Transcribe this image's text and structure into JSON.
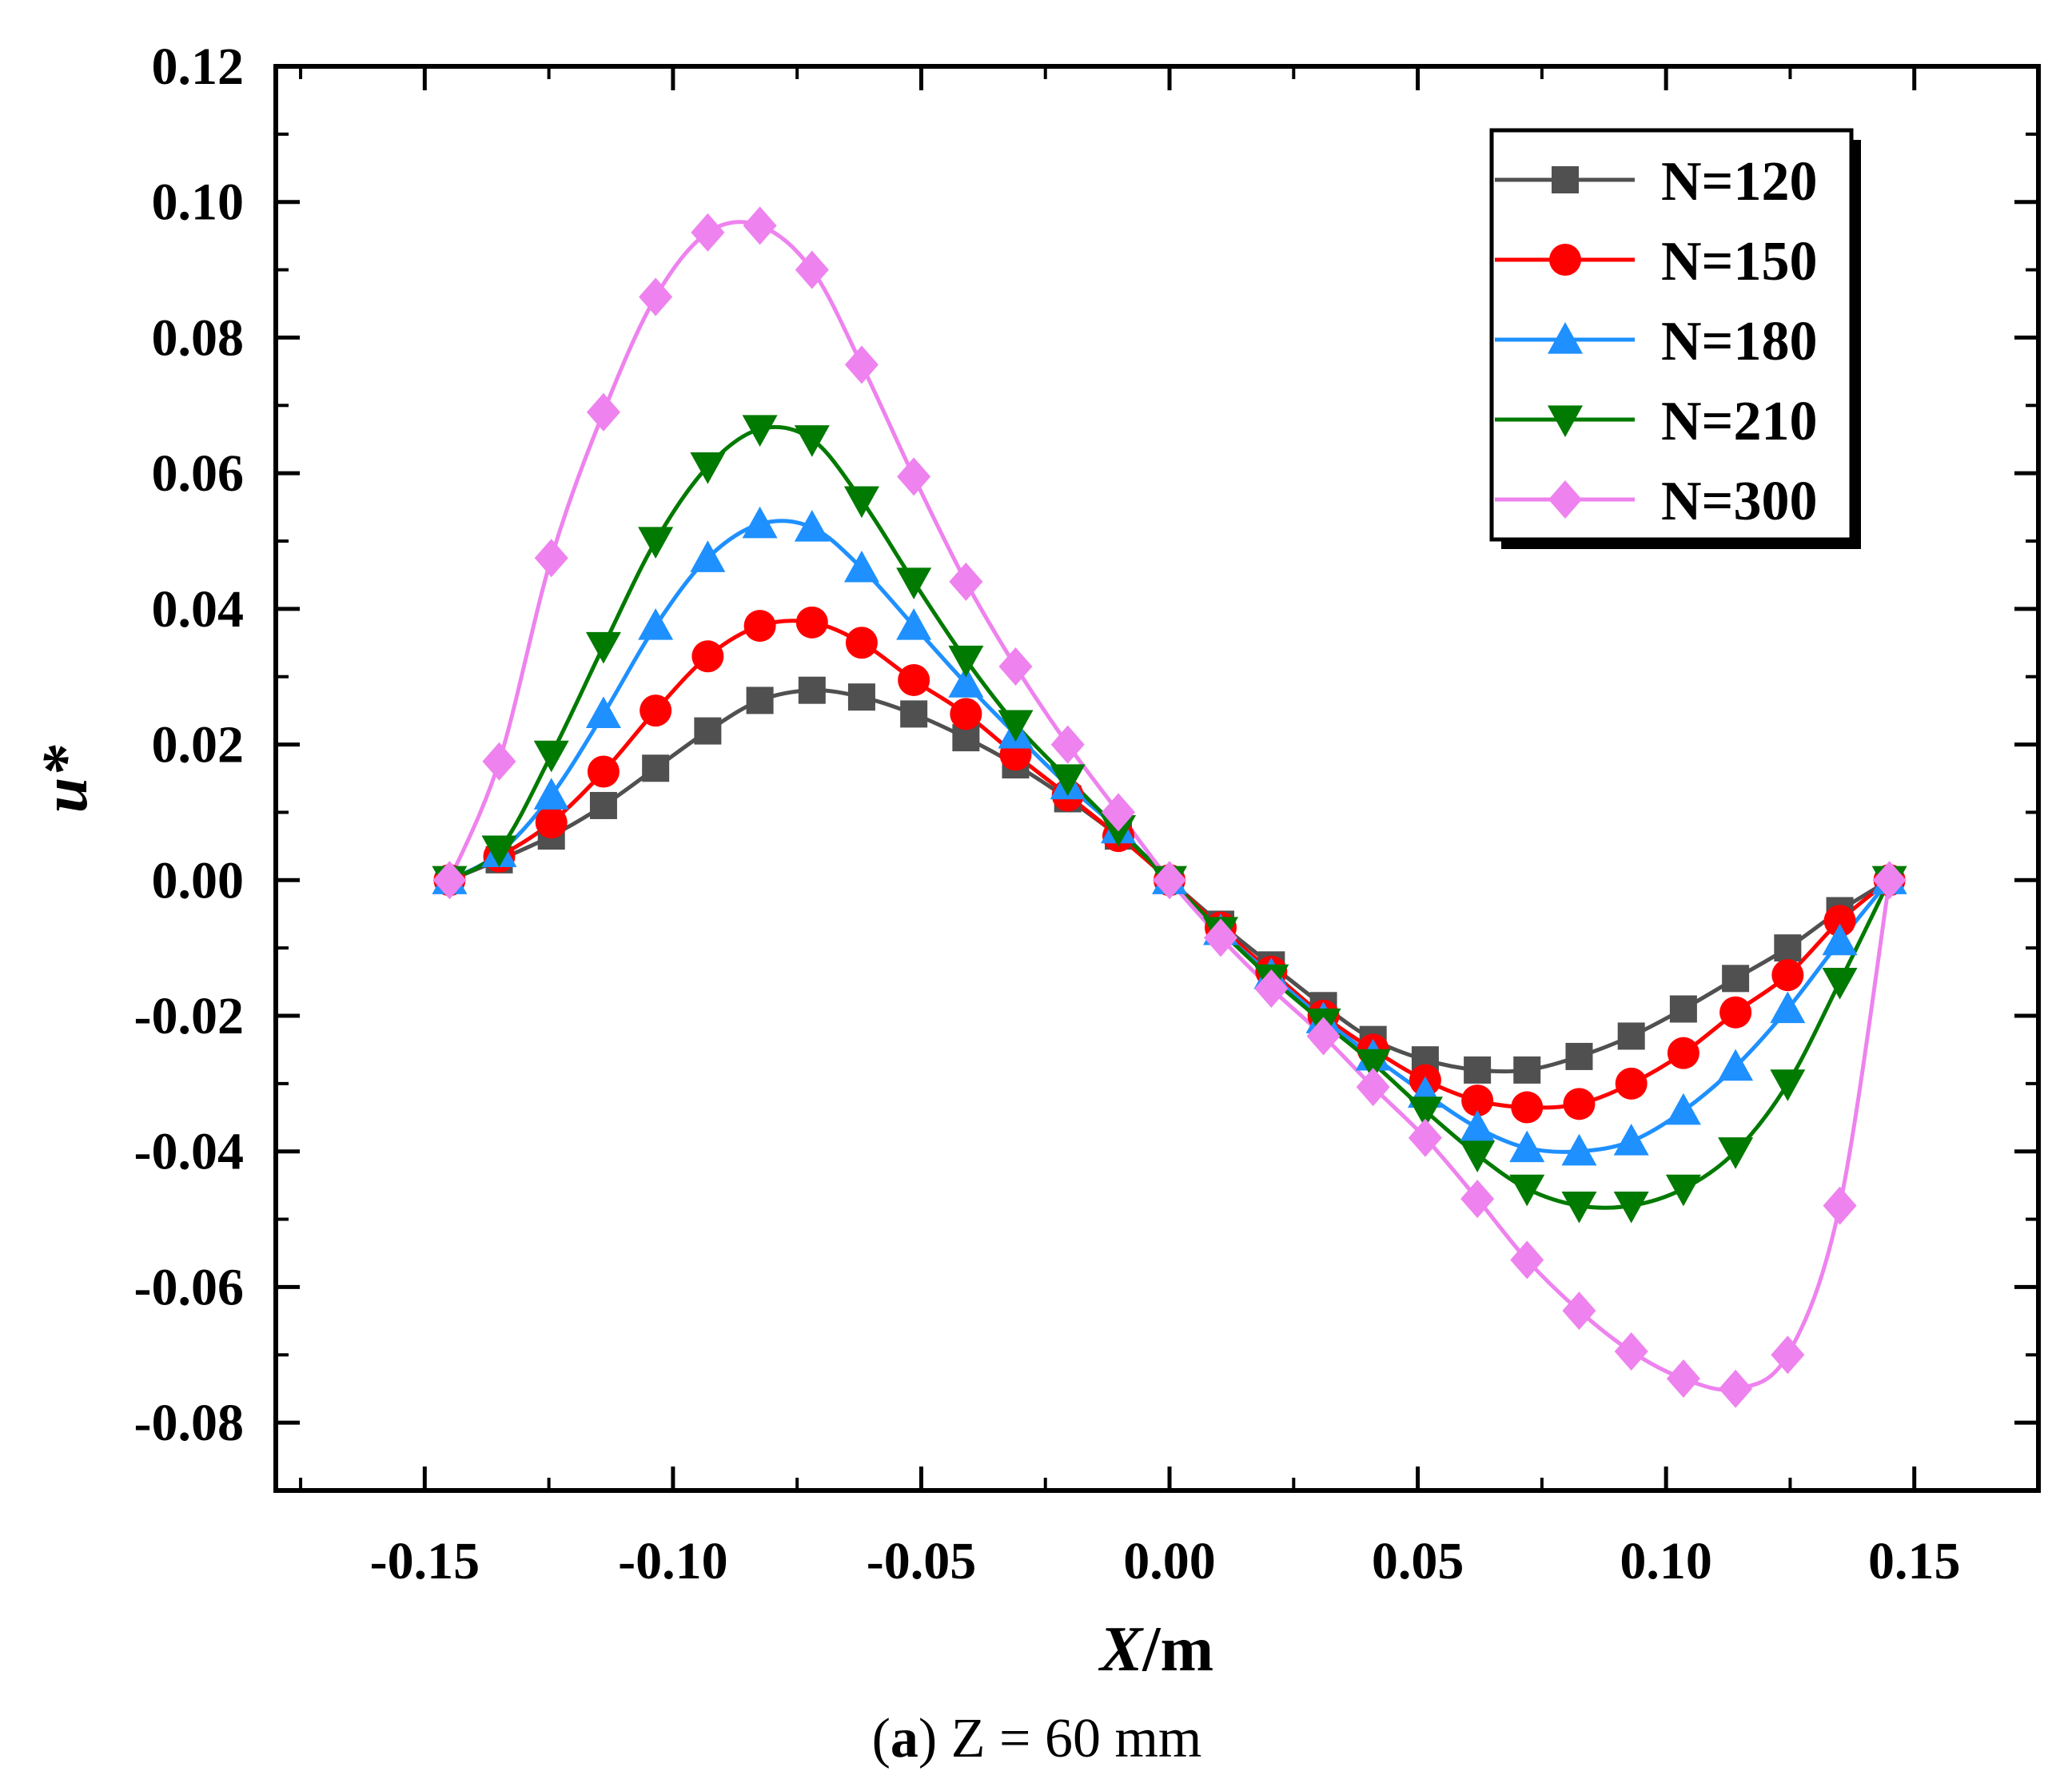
{
  "chart_data": {
    "type": "line",
    "title": "",
    "xlabel_italic": "X",
    "xlabel_rest": "/m",
    "ylabel": "u*",
    "xlim": [
      -0.18,
      0.175
    ],
    "ylim": [
      -0.09,
      0.12
    ],
    "xticks": [
      -0.15,
      -0.1,
      -0.05,
      0.0,
      0.05,
      0.1,
      0.15
    ],
    "xtick_labels": [
      "-0.15",
      "-0.10",
      "-0.05",
      "0.00",
      "0.05",
      "0.10",
      "0.15"
    ],
    "yticks": [
      -0.08,
      -0.06,
      -0.04,
      -0.02,
      0.0,
      0.02,
      0.04,
      0.06,
      0.08,
      0.1,
      0.12
    ],
    "ytick_labels": [
      "-0.08",
      "-0.06",
      "-0.04",
      "-0.02",
      "0.00",
      "0.02",
      "0.04",
      "0.06",
      "0.08",
      "0.10",
      "0.12"
    ],
    "legend_position": "top-right",
    "x": [
      -0.145,
      -0.135,
      -0.1245,
      -0.114,
      -0.1035,
      -0.093,
      -0.0825,
      -0.072,
      -0.062,
      -0.0515,
      -0.041,
      -0.031,
      -0.0205,
      -0.0103,
      0.0,
      0.0103,
      0.0205,
      0.031,
      0.041,
      0.0515,
      0.062,
      0.072,
      0.0825,
      0.093,
      0.1035,
      0.114,
      0.1245,
      0.135,
      0.145
    ],
    "series": [
      {
        "name": "N=120",
        "color": "#505050",
        "marker": "square",
        "values": [
          0.0,
          0.003,
          0.0065,
          0.011,
          0.0165,
          0.022,
          0.0265,
          0.028,
          0.027,
          0.0245,
          0.021,
          0.017,
          0.012,
          0.0065,
          0.0,
          -0.0065,
          -0.0125,
          -0.0185,
          -0.0235,
          -0.0265,
          -0.028,
          -0.028,
          -0.026,
          -0.023,
          -0.019,
          -0.0145,
          -0.01,
          -0.0045,
          0.0
        ]
      },
      {
        "name": "N=150",
        "color": "#ff0000",
        "marker": "circle",
        "values": [
          0.0,
          0.0035,
          0.0085,
          0.016,
          0.025,
          0.033,
          0.0375,
          0.038,
          0.035,
          0.0295,
          0.0245,
          0.0185,
          0.0125,
          0.0065,
          0.0,
          -0.007,
          -0.0135,
          -0.02,
          -0.025,
          -0.0295,
          -0.0325,
          -0.0335,
          -0.033,
          -0.03,
          -0.0255,
          -0.0195,
          -0.014,
          -0.006,
          0.0
        ]
      },
      {
        "name": "N=180",
        "color": "#1e90ff",
        "marker": "triangle-up",
        "values": [
          0.0,
          0.004,
          0.0125,
          0.0245,
          0.0375,
          0.0475,
          0.0525,
          0.052,
          0.046,
          0.0375,
          0.029,
          0.0215,
          0.014,
          0.0075,
          0.0,
          -0.0075,
          -0.014,
          -0.0205,
          -0.026,
          -0.0315,
          -0.0365,
          -0.0395,
          -0.04,
          -0.0385,
          -0.034,
          -0.0275,
          -0.019,
          -0.009,
          0.0
        ]
      },
      {
        "name": "N=210",
        "color": "#007a00",
        "marker": "triangle-down",
        "values": [
          0.0,
          0.0045,
          0.0185,
          0.0345,
          0.05,
          0.061,
          0.0665,
          0.065,
          0.056,
          0.044,
          0.0325,
          0.023,
          0.015,
          0.0075,
          0.0,
          -0.0075,
          -0.0145,
          -0.021,
          -0.027,
          -0.034,
          -0.0405,
          -0.0455,
          -0.048,
          -0.048,
          -0.0455,
          -0.04,
          -0.03,
          -0.015,
          0.0
        ]
      },
      {
        "name": "N=300",
        "color": "#ee82ee",
        "marker": "diamond",
        "values": [
          0.0,
          0.0175,
          0.0475,
          0.069,
          0.086,
          0.0955,
          0.0965,
          0.09,
          0.076,
          0.0595,
          0.044,
          0.0315,
          0.02,
          0.01,
          0.0,
          -0.0085,
          -0.016,
          -0.023,
          -0.0305,
          -0.038,
          -0.047,
          -0.056,
          -0.0635,
          -0.0695,
          -0.0735,
          -0.075,
          -0.07,
          -0.048,
          0.0
        ]
      }
    ]
  },
  "caption": {
    "open": "(",
    "bold": "a",
    "rest": ") Z = 60 mm"
  }
}
